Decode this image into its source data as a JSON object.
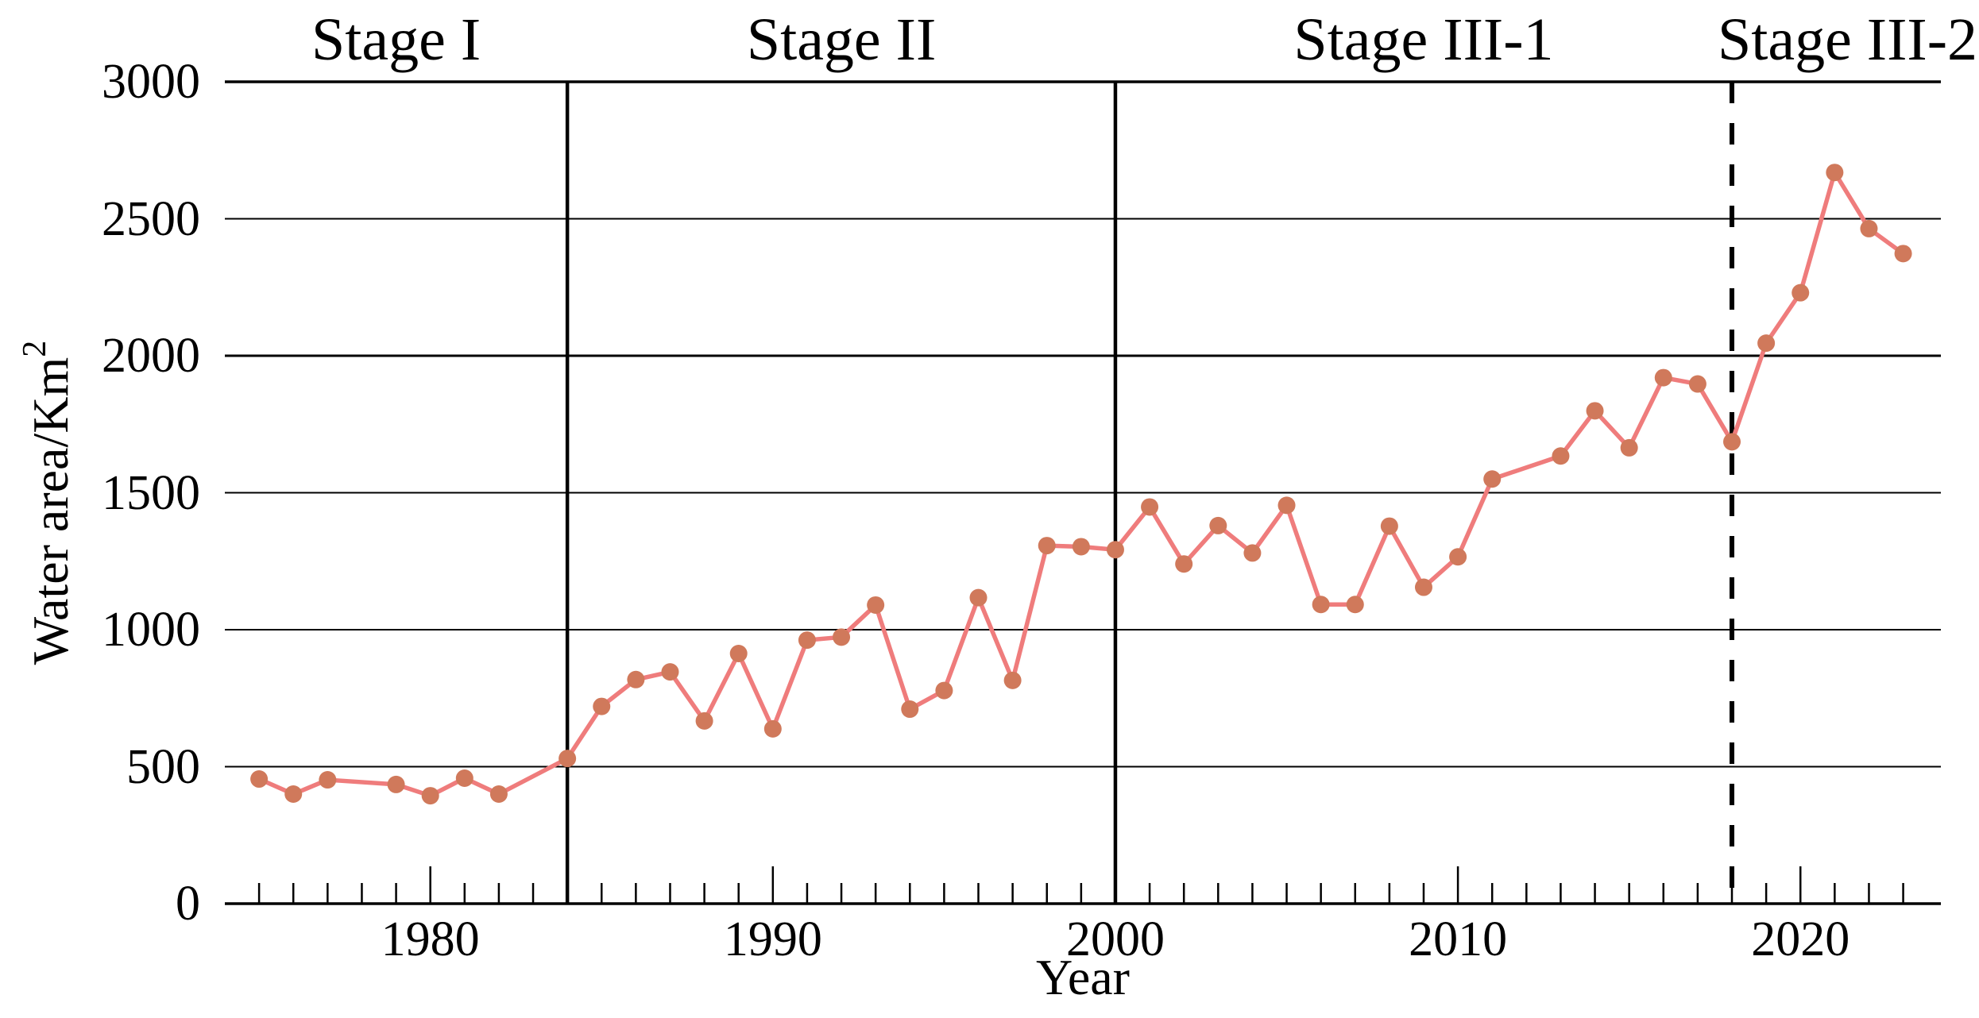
{
  "chart_data": {
    "type": "line",
    "title": "",
    "xlabel": "Year",
    "ylabel_base": "Water area/Km",
    "ylabel_sup": "2",
    "ylim": [
      0,
      3000
    ],
    "xlim": [
      1974,
      2024.1
    ],
    "y_ticks": [
      0,
      500,
      1000,
      1500,
      2000,
      2500,
      3000
    ],
    "x_major_ticks": [
      1980,
      1990,
      2000,
      2010,
      2020
    ],
    "x_minor_ticks_range": {
      "from": 1975,
      "to": 2023,
      "step": 1
    },
    "grid": "horizontal-only",
    "legend": "none",
    "stages": [
      {
        "label": "Stage I",
        "from": 1974,
        "to": 1984
      },
      {
        "label": "Stage II",
        "from": 1984,
        "to": 2000
      },
      {
        "label": "Stage III-1",
        "from": 2000,
        "to": 2018
      },
      {
        "label": "Stage III-2",
        "from": 2018,
        "to": 2024.75
      }
    ],
    "dividers": [
      {
        "year": 1984,
        "style": "solid"
      },
      {
        "year": 2000,
        "style": "solid"
      },
      {
        "year": 2018,
        "style": "dashed"
      }
    ],
    "series": [
      {
        "name": "Water area",
        "points": [
          [
            1975,
            455
          ],
          [
            1976,
            400
          ],
          [
            1977,
            452
          ],
          [
            1979,
            435
          ],
          [
            1980,
            394
          ],
          [
            1981,
            458
          ],
          [
            1982,
            400
          ],
          [
            1984,
            530
          ],
          [
            1985,
            720
          ],
          [
            1986,
            818
          ],
          [
            1987,
            846
          ],
          [
            1988,
            667
          ],
          [
            1989,
            913
          ],
          [
            1990,
            638
          ],
          [
            1991,
            962
          ],
          [
            1992,
            973
          ],
          [
            1993,
            1090
          ],
          [
            1994,
            710
          ],
          [
            1995,
            778
          ],
          [
            1996,
            1117
          ],
          [
            1997,
            815
          ],
          [
            1998,
            1307
          ],
          [
            1999,
            1303
          ],
          [
            2000,
            1292
          ],
          [
            2001,
            1448
          ],
          [
            2002,
            1240
          ],
          [
            2003,
            1380
          ],
          [
            2004,
            1280
          ],
          [
            2005,
            1454
          ],
          [
            2006,
            1092
          ],
          [
            2007,
            1092
          ],
          [
            2008,
            1378
          ],
          [
            2009,
            1155
          ],
          [
            2010,
            1266
          ],
          [
            2011,
            1550
          ],
          [
            2013,
            1634
          ],
          [
            2014,
            1799
          ],
          [
            2015,
            1664
          ],
          [
            2016,
            1920
          ],
          [
            2017,
            1897
          ],
          [
            2018,
            1686
          ],
          [
            2019,
            2046
          ],
          [
            2020,
            2230
          ],
          [
            2021,
            2669
          ],
          [
            2022,
            2464
          ],
          [
            2023,
            2373
          ]
        ]
      }
    ],
    "colors": {
      "line": "#ef7c7c",
      "marker": "#d0795b",
      "axis": "#000000",
      "grid": "#000000"
    }
  }
}
